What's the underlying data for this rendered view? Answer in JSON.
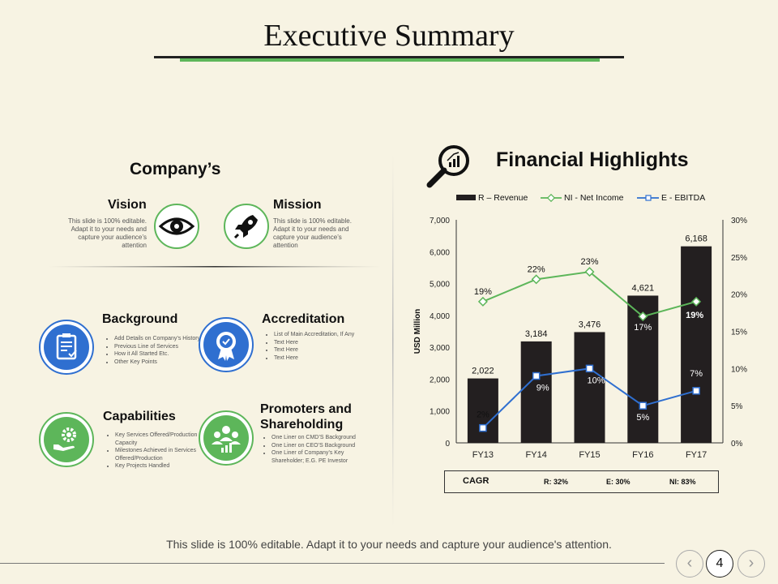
{
  "title": "Executive Summary",
  "company": {
    "heading": "Company’s",
    "vision": {
      "title": "Vision",
      "text": "This slide is 100% editable. Adapt it to your needs and capture your audience’s attention",
      "icon": "eye-icon"
    },
    "mission": {
      "title": "Mission",
      "text": "This slide is 100% editable. Adapt it to your needs and capture your audience’s attention",
      "icon": "rocket-icon"
    },
    "background": {
      "title": "Background",
      "icon": "clipboard-icon",
      "bullets": [
        "Add Details on Company’s History",
        "Previous Line of Services",
        "How it All Started Etc.",
        "Other Key Points"
      ]
    },
    "accreditation": {
      "title": "Accreditation",
      "icon": "award-icon",
      "bullets": [
        "List of Main Accreditation, If Any",
        "Text Here",
        "Text Here",
        "Text Here"
      ]
    },
    "capabilities": {
      "title": "Capabilities",
      "icon": "gear-hand-icon",
      "bullets": [
        "Key Services Offered/Production Capacity",
        "Milestones Achieved in Services Offered/Production",
        "Key Projects Handled"
      ]
    },
    "promoters": {
      "title": "Promoters and Shareholding",
      "icon": "people-chart-icon",
      "bullets": [
        "One Liner on CMD’S Background",
        "One Liner on CEO’S Background",
        "One Liner of Company’s Key Shareholder; E.G. PE Investor"
      ]
    }
  },
  "financial": {
    "title": "Financial Highlights",
    "icon": "magnifier-chart-icon",
    "cagr": {
      "label": "CAGR",
      "r": "R: 32%",
      "e": "E: 30%",
      "ni": "NI: 83%"
    }
  },
  "colors": {
    "green": "#5db65a",
    "blue": "#2f6fd0",
    "bar": "#231f20",
    "background": "#f7f3e3"
  },
  "chart_data": {
    "type": "bar",
    "categories": [
      "FY13",
      "FY14",
      "FY15",
      "FY16",
      "FY17"
    ],
    "ylabel": "USD Million",
    "ylim": [
      0,
      7000
    ],
    "y2lim": [
      0,
      30
    ],
    "yticks": [
      "0",
      "1,000",
      "2,000",
      "3,000",
      "4,000",
      "5,000",
      "6,000",
      "7,000"
    ],
    "y2ticks": [
      "0%",
      "5%",
      "10%",
      "15%",
      "20%",
      "25%",
      "30%"
    ],
    "legend_position": "top",
    "series": [
      {
        "name": "R – Revenue",
        "type": "bar",
        "axis": "left",
        "values": [
          2022,
          3184,
          3476,
          4621,
          6168
        ],
        "labels": [
          "2,022",
          "3,184",
          "3,476",
          "4,621",
          "6,168"
        ]
      },
      {
        "name": "NI - Net Income",
        "type": "line",
        "axis": "right",
        "values": [
          19,
          22,
          23,
          17,
          19
        ],
        "labels": [
          "19%",
          "22%",
          "23%",
          "17%",
          "19%"
        ]
      },
      {
        "name": "E - EBITDA",
        "type": "line",
        "axis": "right",
        "values": [
          2,
          9,
          10,
          5,
          7
        ],
        "labels": [
          "2%",
          "9%",
          "10%",
          "5%",
          "7%"
        ]
      }
    ]
  },
  "footer": {
    "text": "This slide is 100% editable. Adapt it to your needs and capture your audience's attention.",
    "page": "4",
    "prev": "‹",
    "next": "›"
  }
}
